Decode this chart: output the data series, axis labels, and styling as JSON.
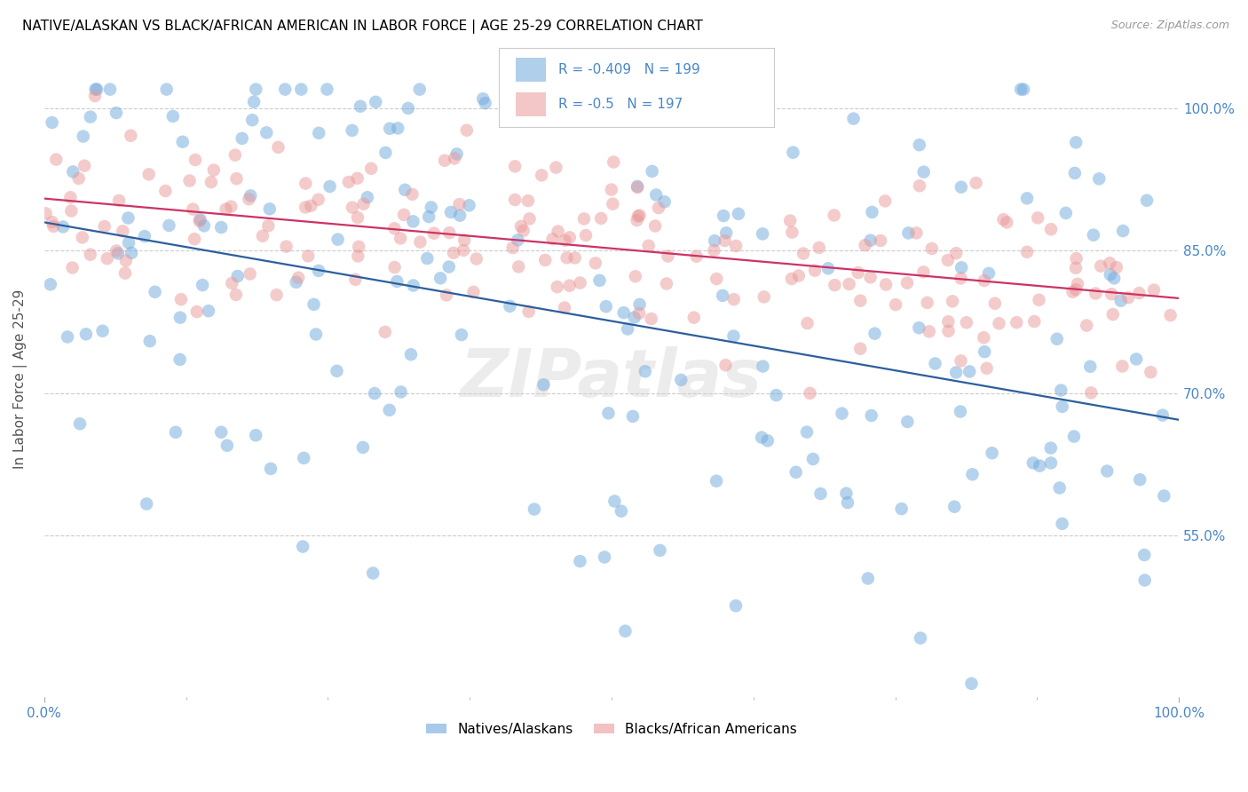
{
  "title": "NATIVE/ALASKAN VS BLACK/AFRICAN AMERICAN IN LABOR FORCE | AGE 25-29 CORRELATION CHART",
  "source": "Source: ZipAtlas.com",
  "ylabel": "In Labor Force | Age 25-29",
  "xlim": [
    0.0,
    1.0
  ],
  "ylim": [
    0.38,
    1.05
  ],
  "yticks": [
    0.55,
    0.7,
    0.85,
    1.0
  ],
  "ytick_labels": [
    "55.0%",
    "70.0%",
    "85.0%",
    "100.0%"
  ],
  "xtick_labels": [
    "0.0%",
    "100.0%"
  ],
  "blue_R": -0.409,
  "blue_N": 199,
  "pink_R": -0.5,
  "pink_N": 197,
  "blue_color": "#6fa8dc",
  "pink_color": "#ea9999",
  "blue_line_color": "#2c5f9e",
  "pink_line_color": "#cc3366",
  "blue_line_start_y": 0.88,
  "blue_line_end_y": 0.672,
  "pink_line_start_y": 0.905,
  "pink_line_end_y": 0.8,
  "title_fontsize": 11,
  "source_fontsize": 9,
  "axis_label_color": "#4a86c8",
  "legend_text_color": "#4a86c8",
  "legend_label1": "Natives/Alaskans",
  "legend_label2": "Blacks/African Americans",
  "watermark": "ZIPatlas",
  "seed_blue": 42,
  "seed_pink": 7
}
